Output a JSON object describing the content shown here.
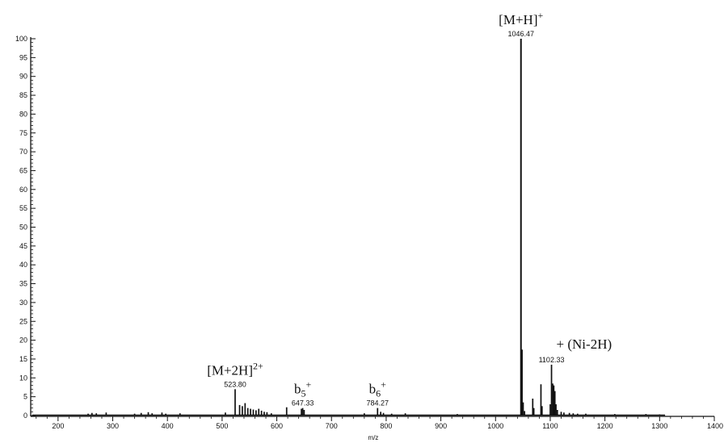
{
  "chart_data": {
    "type": "bar",
    "xlabel": "m/z",
    "ylabel": "",
    "xlim": [
      150,
      1400
    ],
    "ylim": [
      0,
      100
    ],
    "x_ticks": [
      200,
      300,
      400,
      500,
      600,
      700,
      800,
      900,
      1000,
      1100,
      1200,
      1300,
      1400
    ],
    "y_ticks": [
      0,
      5,
      10,
      15,
      20,
      25,
      30,
      35,
      40,
      45,
      50,
      55,
      60,
      65,
      70,
      75,
      80,
      85,
      90,
      95,
      100
    ],
    "peak_labels": [
      {
        "mz": 523.8,
        "text": "523.80",
        "intensity": 7
      },
      {
        "mz": 647.33,
        "text": "647.33",
        "intensity": 2
      },
      {
        "mz": 784.27,
        "text": "784.27",
        "intensity": 2
      },
      {
        "mz": 1046.47,
        "text": "1046.47",
        "intensity": 100
      },
      {
        "mz": 1102.33,
        "text": "1102.33",
        "intensity": 13.5
      }
    ],
    "annotations": [
      {
        "mz": 1046.47,
        "base": "[M+H]",
        "sup": "+",
        "intensity": 100
      },
      {
        "mz": 523.8,
        "base": "[M+2H]",
        "sup": "2+",
        "intensity": 7
      },
      {
        "mz": 647.33,
        "base": "b",
        "sub": "5",
        "sup": "+",
        "intensity": 2
      },
      {
        "mz": 784.27,
        "base": "b",
        "sub": "6",
        "sup": "+",
        "intensity": 2
      },
      {
        "mz": 1102.33,
        "base": "+ (Ni-2H)",
        "intensity": 13.5
      }
    ],
    "peaks": [
      {
        "mz": 255,
        "i": 0.5
      },
      {
        "mz": 262,
        "i": 0.7
      },
      {
        "mz": 270,
        "i": 0.6
      },
      {
        "mz": 288,
        "i": 0.8
      },
      {
        "mz": 340,
        "i": 0.5
      },
      {
        "mz": 352,
        "i": 0.7
      },
      {
        "mz": 365,
        "i": 0.9
      },
      {
        "mz": 372,
        "i": 0.6
      },
      {
        "mz": 390,
        "i": 0.8
      },
      {
        "mz": 397,
        "i": 0.5
      },
      {
        "mz": 423,
        "i": 0.6
      },
      {
        "mz": 506,
        "i": 0.8
      },
      {
        "mz": 523.8,
        "i": 7
      },
      {
        "mz": 532,
        "i": 2.8
      },
      {
        "mz": 537,
        "i": 2.5
      },
      {
        "mz": 542,
        "i": 3.3
      },
      {
        "mz": 547,
        "i": 2.0
      },
      {
        "mz": 552,
        "i": 1.8
      },
      {
        "mz": 557,
        "i": 1.6
      },
      {
        "mz": 562,
        "i": 1.4
      },
      {
        "mz": 567,
        "i": 1.8
      },
      {
        "mz": 572,
        "i": 1.3
      },
      {
        "mz": 577,
        "i": 1.0
      },
      {
        "mz": 582,
        "i": 0.9
      },
      {
        "mz": 590,
        "i": 0.6
      },
      {
        "mz": 618,
        "i": 2.2
      },
      {
        "mz": 645,
        "i": 1.8
      },
      {
        "mz": 647.33,
        "i": 2.0
      },
      {
        "mz": 650,
        "i": 1.5
      },
      {
        "mz": 760,
        "i": 0.6
      },
      {
        "mz": 784.27,
        "i": 2.0
      },
      {
        "mz": 790,
        "i": 1.0
      },
      {
        "mz": 795,
        "i": 0.7
      },
      {
        "mz": 810,
        "i": 0.5
      },
      {
        "mz": 835,
        "i": 0.6
      },
      {
        "mz": 930,
        "i": 0.4
      },
      {
        "mz": 1046.47,
        "i": 100
      },
      {
        "mz": 1048.5,
        "i": 17.5
      },
      {
        "mz": 1050.5,
        "i": 3.5
      },
      {
        "mz": 1053,
        "i": 1.2
      },
      {
        "mz": 1068,
        "i": 4.5
      },
      {
        "mz": 1070,
        "i": 2.0
      },
      {
        "mz": 1083,
        "i": 8.3
      },
      {
        "mz": 1085,
        "i": 2.5
      },
      {
        "mz": 1100,
        "i": 3.0
      },
      {
        "mz": 1102.33,
        "i": 13.5
      },
      {
        "mz": 1104.5,
        "i": 8.5
      },
      {
        "mz": 1106.5,
        "i": 8.0
      },
      {
        "mz": 1108.5,
        "i": 6.5
      },
      {
        "mz": 1110.5,
        "i": 3.0
      },
      {
        "mz": 1113,
        "i": 1.5
      },
      {
        "mz": 1120,
        "i": 1.0
      },
      {
        "mz": 1125,
        "i": 0.8
      },
      {
        "mz": 1135,
        "i": 0.7
      },
      {
        "mz": 1142,
        "i": 0.6
      },
      {
        "mz": 1150,
        "i": 0.5
      },
      {
        "mz": 1165,
        "i": 0.5
      },
      {
        "mz": 1218,
        "i": 0.4
      },
      {
        "mz": 1275,
        "i": 0.4
      },
      {
        "mz": 1300,
        "i": 0.3
      }
    ]
  }
}
